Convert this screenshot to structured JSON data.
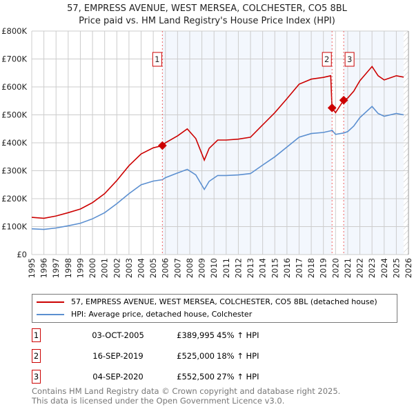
{
  "chart_data": {
    "type": "line",
    "title": "57, EMPRESS AVENUE, WEST MERSEA, COLCHESTER, CO5 8BL",
    "subtitle": "Price paid vs. HM Land Registry's House Price Index (HPI)",
    "xlim": [
      1995,
      2026
    ],
    "ylim": [
      0,
      800000
    ],
    "y_ticks": [
      {
        "v": 0,
        "label": "£0"
      },
      {
        "v": 100000,
        "label": "£100K"
      },
      {
        "v": 200000,
        "label": "£200K"
      },
      {
        "v": 300000,
        "label": "£300K"
      },
      {
        "v": 400000,
        "label": "£400K"
      },
      {
        "v": 500000,
        "label": "£500K"
      },
      {
        "v": 600000,
        "label": "£600K"
      },
      {
        "v": 700000,
        "label": "£700K"
      },
      {
        "v": 800000,
        "label": "£800K"
      }
    ],
    "x_ticks": [
      "1995",
      "1996",
      "1997",
      "1998",
      "1999",
      "2000",
      "2001",
      "2002",
      "2003",
      "2004",
      "2005",
      "2006",
      "2007",
      "2008",
      "2009",
      "2010",
      "2011",
      "2012",
      "2013",
      "2014",
      "2015",
      "2016",
      "2017",
      "2018",
      "2019",
      "2020",
      "2021",
      "2022",
      "2023",
      "2024",
      "2025",
      "2026"
    ],
    "grid": true,
    "series": [
      {
        "name": "57, EMPRESS AVENUE, WEST MERSEA, COLCHESTER, CO5 8BL (detached house)",
        "color": "#cc0000",
        "x": [
          1995,
          1996,
          1997,
          1998,
          1999,
          2000,
          2001,
          2002,
          2003,
          2004,
          2005,
          2005.75,
          2006,
          2007,
          2007.8,
          2008.5,
          2009.2,
          2009.6,
          2010.3,
          2011,
          2012,
          2013,
          2014,
          2015,
          2016,
          2017,
          2018,
          2019,
          2019.6,
          2019.71,
          2020,
          2020.67,
          2021,
          2021.5,
          2022,
          2023,
          2023.5,
          2024,
          2025,
          2025.6
        ],
        "y": [
          133000,
          130000,
          138000,
          150000,
          163000,
          186000,
          218000,
          265000,
          318000,
          360000,
          382000,
          389995,
          400000,
          425000,
          450000,
          415000,
          338000,
          380000,
          410000,
          410000,
          413000,
          420000,
          464000,
          508000,
          558000,
          610000,
          628000,
          634000,
          640000,
          525000,
          508000,
          552500,
          560000,
          585000,
          622000,
          673000,
          640000,
          625000,
          640000,
          635000
        ]
      },
      {
        "name": "HPI: Average price, detached house, Colchester",
        "color": "#5b8fd0",
        "x": [
          1995,
          1996,
          1997,
          1998,
          1999,
          2000,
          2001,
          2002,
          2003,
          2004,
          2005,
          2005.75,
          2006,
          2007,
          2007.8,
          2008.5,
          2009.2,
          2009.6,
          2010.3,
          2011,
          2012,
          2013,
          2014,
          2015,
          2016,
          2017,
          2018,
          2019,
          2019.6,
          2019.71,
          2020,
          2020.67,
          2021,
          2021.5,
          2022,
          2023,
          2023.5,
          2024,
          2025,
          2025.6
        ],
        "y": [
          92000,
          90000,
          95000,
          103000,
          112000,
          128000,
          150000,
          182000,
          218000,
          250000,
          263000,
          268000,
          275000,
          292000,
          305000,
          285000,
          233000,
          262000,
          283000,
          283000,
          285000,
          290000,
          320000,
          350000,
          385000,
          420000,
          433000,
          437000,
          443000,
          445000,
          430000,
          435000,
          440000,
          460000,
          490000,
          530000,
          505000,
          495000,
          505000,
          500000
        ]
      }
    ],
    "sales": [
      {
        "id": "1",
        "x": 2005.75,
        "value": 389995
      },
      {
        "id": "2",
        "x": 2019.71,
        "value": 525000
      },
      {
        "id": "3",
        "x": 2020.67,
        "value": 552500
      }
    ],
    "forecast_from": 2025.6,
    "legend_position": "below"
  },
  "legend": {
    "items": [
      {
        "label": "57, EMPRESS AVENUE, WEST MERSEA, COLCHESTER, CO5 8BL (detached house)",
        "color": "#cc0000"
      },
      {
        "label": "HPI: Average price, detached house, Colchester",
        "color": "#5b8fd0"
      }
    ]
  },
  "table": [
    {
      "num": "1",
      "date": "03-OCT-2005",
      "price": "£389,995",
      "hpi": "45% ↑ HPI"
    },
    {
      "num": "2",
      "date": "16-SEP-2019",
      "price": "£525,000",
      "hpi": "18% ↑ HPI"
    },
    {
      "num": "3",
      "date": "04-SEP-2020",
      "price": "£552,500",
      "hpi": "27% ↑ HPI"
    }
  ],
  "footer": {
    "line1": "Contains HM Land Registry data © Crown copyright and database right 2025.",
    "line2": "This data is licensed under the Open Government Licence v3.0."
  }
}
